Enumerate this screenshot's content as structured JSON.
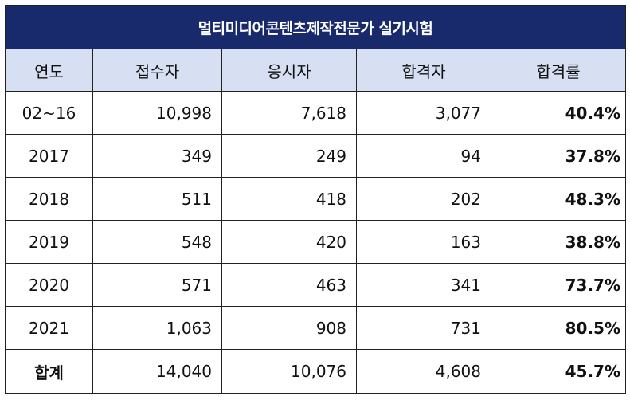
{
  "title": "멀티미디어콘텐츠제작전문가 실기시험",
  "headers": [
    "연도",
    "접수자",
    "응시자",
    "합격자",
    "합격률"
  ],
  "rows": [
    {
      "year": "02~16",
      "applicants": "10,998",
      "examinees": "7,618",
      "passed": "3,077",
      "rate": "40.4%"
    },
    {
      "year": "2017",
      "applicants": "349",
      "examinees": "249",
      "passed": "94",
      "rate": "37.8%"
    },
    {
      "year": "2018",
      "applicants": "511",
      "examinees": "418",
      "passed": "202",
      "rate": "48.3%"
    },
    {
      "year": "2019",
      "applicants": "548",
      "examinees": "420",
      "passed": "163",
      "rate": "38.8%"
    },
    {
      "year": "2020",
      "applicants": "571",
      "examinees": "463",
      "passed": "341",
      "rate": "73.7%"
    },
    {
      "year": "2021",
      "applicants": "1,063",
      "examinees": "908",
      "passed": "731",
      "rate": "80.5%"
    }
  ],
  "total": {
    "label": "합계",
    "applicants": "14,040",
    "examinees": "10,076",
    "passed": "4,608",
    "rate": "45.7%"
  },
  "colors": {
    "title_bg": "#182a6b",
    "header_bg": "#d7dff3"
  }
}
